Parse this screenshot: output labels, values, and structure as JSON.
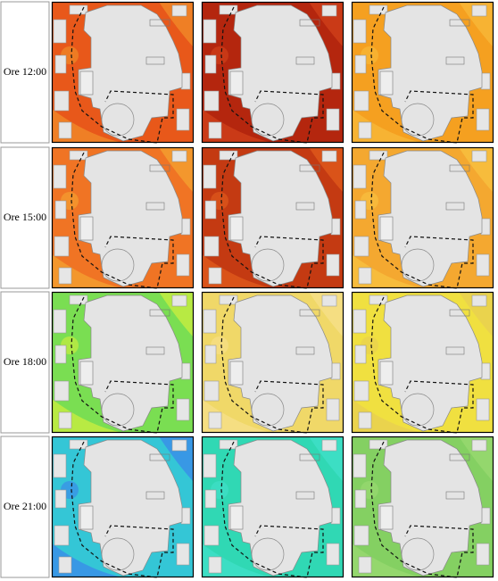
{
  "rows": [
    {
      "label": "Ore 12:00"
    },
    {
      "label": "Ore 15:00"
    },
    {
      "label": "Ore 18:00"
    },
    {
      "label": "Ore 21:00"
    }
  ]
}
